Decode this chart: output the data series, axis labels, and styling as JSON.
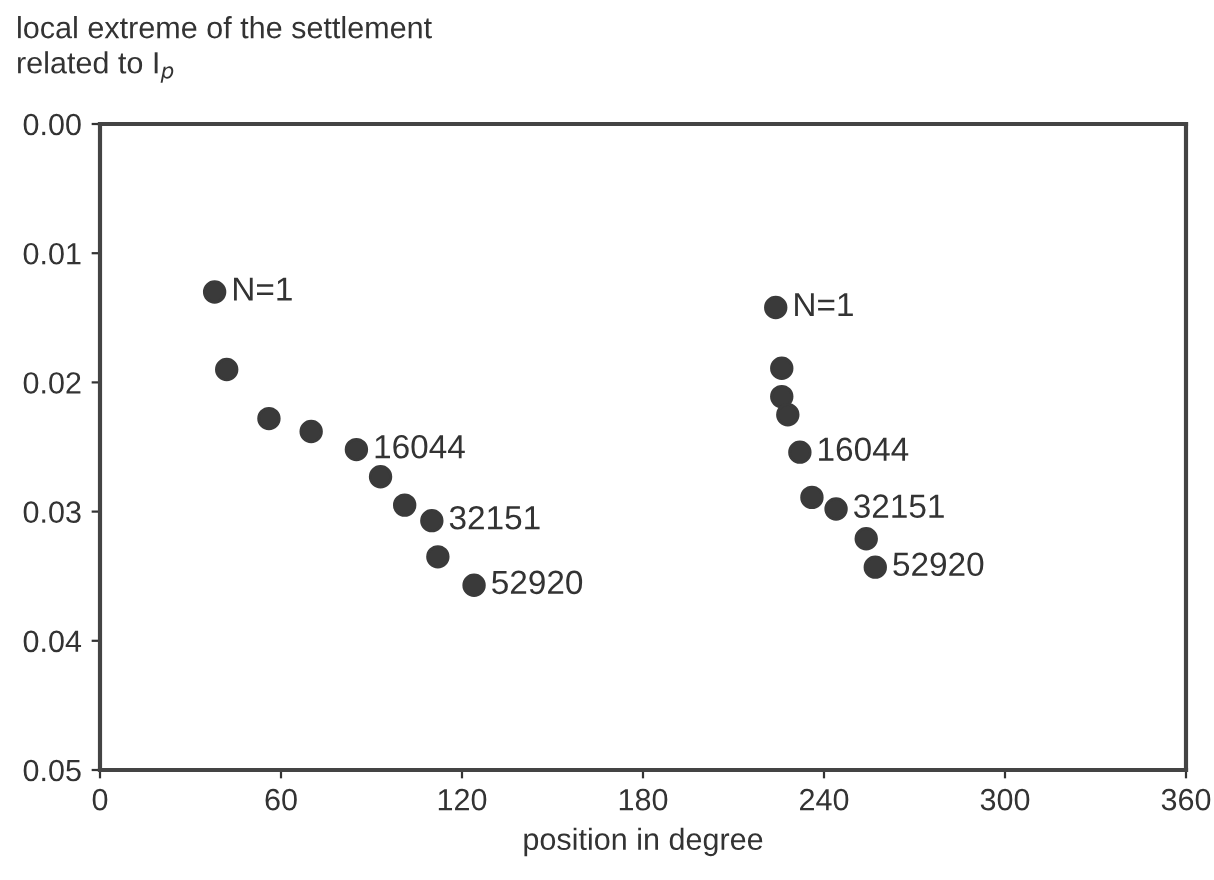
{
  "chart_data": {
    "type": "scatter",
    "xlabel": "position in degree",
    "ylabel": "local extreme of the settlement\nrelated to I$_{p}$",
    "xlim": [
      0,
      360
    ],
    "xticks": [
      0,
      60,
      120,
      180,
      240,
      300,
      360
    ],
    "ylim": [
      0.05,
      0
    ],
    "yticks": [
      {
        "value": 0,
        "label": "0.00"
      },
      {
        "value": 0.01,
        "label": "0.01"
      },
      {
        "value": 0.02,
        "label": "0.02"
      },
      {
        "value": 0.03,
        "label": "0.03"
      },
      {
        "value": 0.04,
        "label": "0.04"
      },
      {
        "value": 0.05,
        "label": "0.05"
      }
    ],
    "grid": false,
    "marker": "circle",
    "series": [
      {
        "color": "#3a3a3a",
        "x": [
          38,
          42,
          56,
          70,
          85,
          93,
          101,
          110,
          112,
          124
        ],
        "values": [
          0.013,
          0.019,
          0.0228,
          0.0238,
          0.0252,
          0.0273,
          0.0295,
          0.0307,
          0.0335,
          0.0357
        ]
      },
      {
        "color": "#3a3a3a",
        "x": [
          224,
          226,
          226,
          228,
          232,
          236,
          244,
          254,
          257
        ],
        "values": [
          0.0142,
          0.0189,
          0.0211,
          0.0225,
          0.0254,
          0.0289,
          0.0298,
          0.0321,
          0.0343
        ]
      }
    ],
    "annotations": [
      {
        "text": "N=1",
        "x": 38,
        "y": 0.013
      },
      {
        "text": "16044",
        "x": 85,
        "y": 0.0252
      },
      {
        "text": "32151",
        "x": 110,
        "y": 0.0307
      },
      {
        "text": "52920",
        "x": 124,
        "y": 0.0357
      },
      {
        "text": "N=1",
        "x": 224,
        "y": 0.0142
      },
      {
        "text": "16044",
        "x": 232,
        "y": 0.0254
      },
      {
        "text": "32151",
        "x": 244,
        "y": 0.0298
      },
      {
        "text": "52920",
        "x": 257,
        "y": 0.0343
      }
    ]
  }
}
